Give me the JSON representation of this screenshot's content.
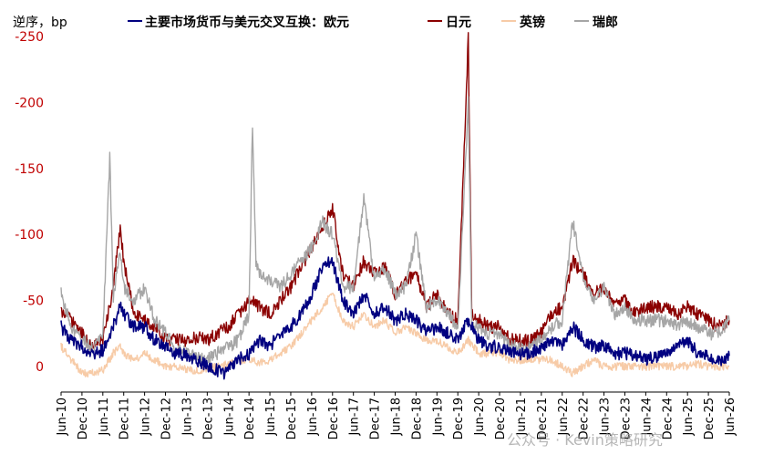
{
  "chart_data": {
    "type": "line",
    "y_unit_label": "逆序，bp",
    "legend_title": "主要市场货币与美元交叉互换：",
    "legend_position": "top",
    "y_axis_reversed": true,
    "ylim": [
      -250,
      0
    ],
    "y_ticks": [
      {
        "value": -250,
        "label": "-250"
      },
      {
        "value": -200,
        "label": "-200"
      },
      {
        "value": -150,
        "label": "-150"
      },
      {
        "value": -100,
        "label": "-100"
      },
      {
        "value": -50,
        "label": "-50"
      },
      {
        "value": 0,
        "label": "0"
      }
    ],
    "x_tick_labels": [
      "Jun-10",
      "Dec-10",
      "Jun-11",
      "Dec-11",
      "Jun-12",
      "Dec-12",
      "Jun-13",
      "Dec-13",
      "Jun-14",
      "Dec-14",
      "Jun-15",
      "Dec-15",
      "Jun-16",
      "Dec-16",
      "Jun-17",
      "Dec-17",
      "Jun-18",
      "Dec-18",
      "Jun-19",
      "Dec-19",
      "Jun-20",
      "Dec-20",
      "Jun-21",
      "Dec-21",
      "Jun-22",
      "Dec-22",
      "Jun-23",
      "Dec-23",
      "Jun-24",
      "Dec-24",
      "Jun-25",
      "Dec-25",
      "Jun-26"
    ],
    "x_start": "2010-06",
    "x_end": "2026-06",
    "grid": false,
    "series": [
      {
        "name": "欧元",
        "color": "#000080",
        "points": [
          [
            "2010-06",
            -30
          ],
          [
            "2010-09",
            -20
          ],
          [
            "2010-12",
            -15
          ],
          [
            "2011-03",
            -10
          ],
          [
            "2011-06",
            -12
          ],
          [
            "2011-09",
            -30
          ],
          [
            "2011-11",
            -45
          ],
          [
            "2011-12",
            -40
          ],
          [
            "2012-03",
            -30
          ],
          [
            "2012-06",
            -30
          ],
          [
            "2012-09",
            -20
          ],
          [
            "2012-12",
            -15
          ],
          [
            "2013-03",
            -10
          ],
          [
            "2013-06",
            -8
          ],
          [
            "2013-09",
            -5
          ],
          [
            "2013-12",
            0
          ],
          [
            "2014-03",
            3
          ],
          [
            "2014-05",
            5
          ],
          [
            "2014-06",
            2
          ],
          [
            "2014-09",
            -5
          ],
          [
            "2014-12",
            -10
          ],
          [
            "2015-01",
            -15
          ],
          [
            "2015-03",
            -20
          ],
          [
            "2015-06",
            -15
          ],
          [
            "2015-09",
            -25
          ],
          [
            "2015-12",
            -30
          ],
          [
            "2016-03",
            -40
          ],
          [
            "2016-06",
            -55
          ],
          [
            "2016-09",
            -75
          ],
          [
            "2016-12",
            -80
          ],
          [
            "2017-03",
            -50
          ],
          [
            "2017-06",
            -40
          ],
          [
            "2017-09",
            -55
          ],
          [
            "2017-12",
            -40
          ],
          [
            "2018-03",
            -45
          ],
          [
            "2018-06",
            -35
          ],
          [
            "2018-09",
            -40
          ],
          [
            "2018-12",
            -35
          ],
          [
            "2019-03",
            -25
          ],
          [
            "2019-06",
            -30
          ],
          [
            "2019-09",
            -25
          ],
          [
            "2019-12",
            -20
          ],
          [
            "2020-03",
            -35
          ],
          [
            "2020-06",
            -20
          ],
          [
            "2020-09",
            -15
          ],
          [
            "2020-12",
            -15
          ],
          [
            "2021-03",
            -12
          ],
          [
            "2021-06",
            -10
          ],
          [
            "2021-09",
            -10
          ],
          [
            "2021-12",
            -15
          ],
          [
            "2022-03",
            -20
          ],
          [
            "2022-06",
            -15
          ],
          [
            "2022-09",
            -30
          ],
          [
            "2022-12",
            -20
          ],
          [
            "2023-03",
            -15
          ],
          [
            "2023-06",
            -15
          ],
          [
            "2023-09",
            -10
          ],
          [
            "2023-12",
            -10
          ],
          [
            "2024-03",
            -8
          ],
          [
            "2024-06",
            -5
          ],
          [
            "2024-09",
            -8
          ],
          [
            "2024-12",
            -10
          ],
          [
            "2025-03",
            -15
          ],
          [
            "2025-06",
            -20
          ],
          [
            "2025-09",
            -10
          ],
          [
            "2025-12",
            -8
          ],
          [
            "2026-03",
            -5
          ],
          [
            "2026-06",
            -8
          ]
        ]
      },
      {
        "name": "日元",
        "color": "#8b0000",
        "points": [
          [
            "2010-06",
            -40
          ],
          [
            "2010-09",
            -35
          ],
          [
            "2010-12",
            -25
          ],
          [
            "2011-03",
            -15
          ],
          [
            "2011-06",
            -20
          ],
          [
            "2011-09",
            -60
          ],
          [
            "2011-11",
            -105
          ],
          [
            "2011-12",
            -80
          ],
          [
            "2012-03",
            -40
          ],
          [
            "2012-06",
            -35
          ],
          [
            "2012-09",
            -30
          ],
          [
            "2012-12",
            -20
          ],
          [
            "2013-03",
            -20
          ],
          [
            "2013-06",
            -20
          ],
          [
            "2013-09",
            -22
          ],
          [
            "2013-12",
            -20
          ],
          [
            "2014-03",
            -25
          ],
          [
            "2014-06",
            -30
          ],
          [
            "2014-09",
            -40
          ],
          [
            "2014-12",
            -50
          ],
          [
            "2015-01",
            -50
          ],
          [
            "2015-03",
            -45
          ],
          [
            "2015-06",
            -40
          ],
          [
            "2015-09",
            -50
          ],
          [
            "2015-12",
            -60
          ],
          [
            "2016-03",
            -75
          ],
          [
            "2016-06",
            -90
          ],
          [
            "2016-09",
            -105
          ],
          [
            "2016-12",
            -120
          ],
          [
            "2017-03",
            -70
          ],
          [
            "2017-06",
            -60
          ],
          [
            "2017-09",
            -80
          ],
          [
            "2017-12",
            -70
          ],
          [
            "2018-03",
            -75
          ],
          [
            "2018-06",
            -55
          ],
          [
            "2018-09",
            -65
          ],
          [
            "2018-12",
            -70
          ],
          [
            "2019-03",
            -45
          ],
          [
            "2019-06",
            -55
          ],
          [
            "2019-09",
            -40
          ],
          [
            "2019-12",
            -35
          ],
          [
            "2020-03",
            -248
          ],
          [
            "2020-04",
            -40
          ],
          [
            "2020-06",
            -35
          ],
          [
            "2020-09",
            -30
          ],
          [
            "2020-12",
            -30
          ],
          [
            "2021-03",
            -20
          ],
          [
            "2021-06",
            -20
          ],
          [
            "2021-09",
            -20
          ],
          [
            "2021-12",
            -25
          ],
          [
            "2022-03",
            -40
          ],
          [
            "2022-06",
            -45
          ],
          [
            "2022-09",
            -80
          ],
          [
            "2022-12",
            -70
          ],
          [
            "2023-03",
            -55
          ],
          [
            "2023-06",
            -60
          ],
          [
            "2023-09",
            -45
          ],
          [
            "2023-12",
            -50
          ],
          [
            "2024-03",
            -40
          ],
          [
            "2024-06",
            -45
          ],
          [
            "2024-09",
            -45
          ],
          [
            "2024-12",
            -45
          ],
          [
            "2025-03",
            -40
          ],
          [
            "2025-06",
            -45
          ],
          [
            "2025-09",
            -40
          ],
          [
            "2025-12",
            -35
          ],
          [
            "2026-03",
            -30
          ],
          [
            "2026-06",
            -35
          ]
        ]
      },
      {
        "name": "英镑",
        "color": "#f7cba7",
        "points": [
          [
            "2010-06",
            -15
          ],
          [
            "2010-09",
            -5
          ],
          [
            "2010-12",
            5
          ],
          [
            "2011-03",
            5
          ],
          [
            "2011-06",
            3
          ],
          [
            "2011-09",
            -10
          ],
          [
            "2011-11",
            -15
          ],
          [
            "2011-12",
            -10
          ],
          [
            "2012-03",
            -5
          ],
          [
            "2012-06",
            -10
          ],
          [
            "2012-09",
            -5
          ],
          [
            "2012-12",
            0
          ],
          [
            "2013-03",
            0
          ],
          [
            "2013-06",
            2
          ],
          [
            "2013-09",
            3
          ],
          [
            "2013-12",
            2
          ],
          [
            "2014-03",
            0
          ],
          [
            "2014-06",
            -2
          ],
          [
            "2014-09",
            -5
          ],
          [
            "2014-12",
            -5
          ],
          [
            "2015-01",
            -5
          ],
          [
            "2015-03",
            -3
          ],
          [
            "2015-06",
            -5
          ],
          [
            "2015-09",
            -10
          ],
          [
            "2015-12",
            -15
          ],
          [
            "2016-03",
            -25
          ],
          [
            "2016-06",
            -35
          ],
          [
            "2016-09",
            -45
          ],
          [
            "2016-12",
            -55
          ],
          [
            "2017-03",
            -35
          ],
          [
            "2017-06",
            -30
          ],
          [
            "2017-09",
            -40
          ],
          [
            "2017-12",
            -30
          ],
          [
            "2018-03",
            -35
          ],
          [
            "2018-06",
            -25
          ],
          [
            "2018-09",
            -30
          ],
          [
            "2018-12",
            -25
          ],
          [
            "2019-03",
            -20
          ],
          [
            "2019-06",
            -20
          ],
          [
            "2019-09",
            -15
          ],
          [
            "2019-12",
            -10
          ],
          [
            "2020-03",
            -20
          ],
          [
            "2020-06",
            -10
          ],
          [
            "2020-09",
            -10
          ],
          [
            "2020-12",
            -10
          ],
          [
            "2021-03",
            -5
          ],
          [
            "2021-06",
            -5
          ],
          [
            "2021-09",
            -5
          ],
          [
            "2021-12",
            -5
          ],
          [
            "2022-03",
            -5
          ],
          [
            "2022-06",
            0
          ],
          [
            "2022-09",
            5
          ],
          [
            "2022-12",
            0
          ],
          [
            "2023-03",
            -5
          ],
          [
            "2023-06",
            0
          ],
          [
            "2023-09",
            0
          ],
          [
            "2023-12",
            0
          ],
          [
            "2024-03",
            0
          ],
          [
            "2024-06",
            0
          ],
          [
            "2024-09",
            0
          ],
          [
            "2024-12",
            0
          ],
          [
            "2025-03",
            0
          ],
          [
            "2025-06",
            0
          ],
          [
            "2025-09",
            -2
          ],
          [
            "2025-12",
            0
          ],
          [
            "2026-03",
            0
          ],
          [
            "2026-06",
            0
          ]
        ]
      },
      {
        "name": "瑞郎",
        "color": "#a6a6a6",
        "points": [
          [
            "2010-06",
            -55
          ],
          [
            "2010-09",
            -30
          ],
          [
            "2010-12",
            -20
          ],
          [
            "2011-03",
            -15
          ],
          [
            "2011-06",
            -25
          ],
          [
            "2011-08",
            -158
          ],
          [
            "2011-09",
            -50
          ],
          [
            "2011-11",
            -90
          ],
          [
            "2011-12",
            -60
          ],
          [
            "2012-03",
            -50
          ],
          [
            "2012-06",
            -60
          ],
          [
            "2012-09",
            -35
          ],
          [
            "2012-12",
            -25
          ],
          [
            "2013-03",
            -15
          ],
          [
            "2013-06",
            -10
          ],
          [
            "2013-09",
            -8
          ],
          [
            "2013-12",
            -5
          ],
          [
            "2014-03",
            -10
          ],
          [
            "2014-06",
            -15
          ],
          [
            "2014-09",
            -20
          ],
          [
            "2014-12",
            -40
          ],
          [
            "2015-01",
            -183
          ],
          [
            "2015-02",
            -80
          ],
          [
            "2015-03",
            -70
          ],
          [
            "2015-06",
            -65
          ],
          [
            "2015-09",
            -60
          ],
          [
            "2015-12",
            -70
          ],
          [
            "2016-03",
            -80
          ],
          [
            "2016-06",
            -90
          ],
          [
            "2016-09",
            -110
          ],
          [
            "2016-12",
            -100
          ],
          [
            "2017-03",
            -60
          ],
          [
            "2017-06",
            -60
          ],
          [
            "2017-09",
            -128
          ],
          [
            "2017-12",
            -65
          ],
          [
            "2018-03",
            -75
          ],
          [
            "2018-06",
            -55
          ],
          [
            "2018-09",
            -60
          ],
          [
            "2018-12",
            -100
          ],
          [
            "2019-03",
            -45
          ],
          [
            "2019-06",
            -50
          ],
          [
            "2019-09",
            -40
          ],
          [
            "2019-12",
            -30
          ],
          [
            "2020-03",
            -200
          ],
          [
            "2020-04",
            -30
          ],
          [
            "2020-06",
            -30
          ],
          [
            "2020-09",
            -25
          ],
          [
            "2020-12",
            -25
          ],
          [
            "2021-03",
            -15
          ],
          [
            "2021-06",
            -15
          ],
          [
            "2021-09",
            -15
          ],
          [
            "2021-12",
            -20
          ],
          [
            "2022-03",
            -30
          ],
          [
            "2022-06",
            -35
          ],
          [
            "2022-09",
            -110
          ],
          [
            "2022-12",
            -70
          ],
          [
            "2023-03",
            -50
          ],
          [
            "2023-06",
            -60
          ],
          [
            "2023-09",
            -40
          ],
          [
            "2023-12",
            -45
          ],
          [
            "2024-03",
            -35
          ],
          [
            "2024-06",
            -35
          ],
          [
            "2024-09",
            -35
          ],
          [
            "2024-12",
            -35
          ],
          [
            "2025-03",
            -30
          ],
          [
            "2025-06",
            -35
          ],
          [
            "2025-09",
            -30
          ],
          [
            "2025-12",
            -25
          ],
          [
            "2026-03",
            -25
          ],
          [
            "2026-06",
            -35
          ]
        ]
      }
    ]
  },
  "watermark": "公众号 · Kevin策略研究"
}
